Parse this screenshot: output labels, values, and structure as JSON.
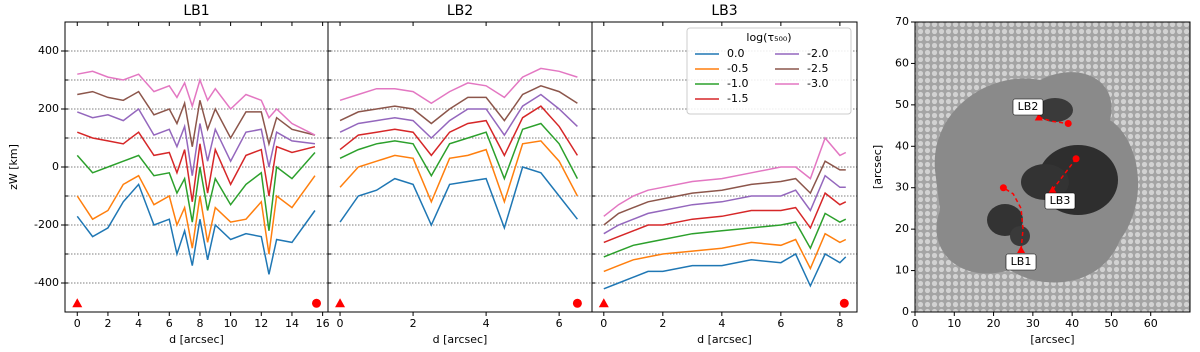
{
  "chart_data": [
    {
      "type": "line",
      "title": "LB1",
      "xlabel": "d [arcsec]",
      "ylabel": "zW [km]",
      "xlim": [
        -0.8,
        16.35
      ],
      "ylim": [
        -500,
        500
      ],
      "xticks": [
        0,
        2,
        4,
        6,
        8,
        10,
        12,
        14,
        16
      ],
      "yticks": [
        -400,
        -200,
        0,
        200,
        400
      ],
      "gridlines": [
        -400,
        -300,
        -200,
        -100,
        0,
        100,
        200,
        300,
        400
      ],
      "x": [
        0,
        1,
        2,
        3,
        4,
        5,
        6,
        6.5,
        7,
        7.5,
        8,
        8.5,
        9,
        10,
        11,
        12,
        12.5,
        13,
        14,
        15.5
      ],
      "series": [
        {
          "color": "#1f77b4",
          "values": [
            -170,
            -240,
            -210,
            -120,
            -60,
            -200,
            -180,
            -300,
            -220,
            -340,
            -180,
            -320,
            -200,
            -250,
            -230,
            -240,
            -370,
            -250,
            -260,
            -150
          ]
        },
        {
          "color": "#ff7f0e",
          "values": [
            -100,
            -180,
            -150,
            -60,
            -30,
            -130,
            -100,
            -200,
            -140,
            -280,
            -100,
            -260,
            -140,
            -190,
            -180,
            -120,
            -300,
            -100,
            -140,
            -30
          ]
        },
        {
          "color": "#2ca02c",
          "values": [
            40,
            -20,
            0,
            20,
            40,
            -30,
            -20,
            -90,
            -40,
            -190,
            0,
            -150,
            -40,
            -130,
            -60,
            -20,
            -220,
            0,
            -40,
            50
          ]
        },
        {
          "color": "#d62728",
          "values": [
            120,
            100,
            90,
            80,
            120,
            40,
            50,
            -20,
            60,
            -120,
            80,
            -90,
            60,
            -60,
            40,
            60,
            -100,
            70,
            50,
            70
          ]
        },
        {
          "color": "#9467bd",
          "values": [
            190,
            170,
            180,
            160,
            200,
            110,
            130,
            70,
            140,
            -30,
            150,
            20,
            130,
            20,
            120,
            130,
            0,
            120,
            90,
            80
          ]
        },
        {
          "color": "#8c564b",
          "values": [
            250,
            260,
            240,
            230,
            260,
            180,
            200,
            150,
            220,
            70,
            230,
            130,
            200,
            100,
            190,
            190,
            80,
            170,
            130,
            110
          ]
        },
        {
          "color": "#e377c2",
          "values": [
            320,
            330,
            310,
            300,
            320,
            260,
            280,
            240,
            290,
            210,
            300,
            230,
            270,
            200,
            250,
            230,
            170,
            200,
            150,
            110
          ]
        }
      ],
      "marker_color": "#ff0000",
      "markers": [
        {
          "shape": "triangle",
          "x": 0,
          "y": -470
        },
        {
          "shape": "circle",
          "x": 15.6,
          "y": -470
        }
      ]
    },
    {
      "type": "line",
      "title": "LB2",
      "xlabel": "d [arcsec]",
      "xlim": [
        -0.33,
        6.9
      ],
      "ylim": [
        -500,
        500
      ],
      "xticks": [
        0,
        2,
        4,
        6
      ],
      "gridlines": [
        -400,
        -300,
        -200,
        -100,
        0,
        100,
        200,
        300,
        400
      ],
      "x": [
        0,
        0.5,
        1,
        1.5,
        2,
        2.5,
        3,
        3.5,
        4,
        4.5,
        5,
        5.5,
        6,
        6.5
      ],
      "series": [
        {
          "color": "#1f77b4",
          "values": [
            -190,
            -100,
            -80,
            -40,
            -60,
            -200,
            -60,
            -50,
            -40,
            -210,
            0,
            -20,
            -100,
            -180
          ]
        },
        {
          "color": "#ff7f0e",
          "values": [
            -70,
            0,
            20,
            40,
            30,
            -120,
            30,
            40,
            60,
            -120,
            80,
            90,
            20,
            -100
          ]
        },
        {
          "color": "#2ca02c",
          "values": [
            30,
            60,
            80,
            90,
            80,
            -30,
            80,
            100,
            120,
            -40,
            130,
            150,
            80,
            -40
          ]
        },
        {
          "color": "#d62728",
          "values": [
            60,
            110,
            120,
            130,
            120,
            40,
            120,
            150,
            160,
            40,
            170,
            210,
            140,
            40
          ]
        },
        {
          "color": "#9467bd",
          "values": [
            120,
            150,
            160,
            170,
            160,
            100,
            160,
            200,
            200,
            110,
            210,
            250,
            200,
            140
          ]
        },
        {
          "color": "#8c564b",
          "values": [
            160,
            190,
            200,
            210,
            200,
            150,
            200,
            240,
            240,
            160,
            250,
            280,
            260,
            220
          ]
        },
        {
          "color": "#e377c2",
          "values": [
            230,
            250,
            270,
            270,
            260,
            220,
            260,
            290,
            280,
            240,
            310,
            340,
            330,
            310
          ]
        }
      ],
      "marker_color": "#ff0000",
      "markers": [
        {
          "shape": "triangle",
          "x": 0,
          "y": -470
        },
        {
          "shape": "circle",
          "x": 6.5,
          "y": -470
        }
      ]
    },
    {
      "type": "line",
      "title": "LB3",
      "xlabel": "d [arcsec]",
      "xlim": [
        -0.4,
        8.58
      ],
      "ylim": [
        -500,
        500
      ],
      "xticks": [
        0,
        2,
        4,
        6,
        8
      ],
      "gridlines": [
        -400,
        -300,
        -200,
        -100,
        0,
        100,
        200,
        300,
        400
      ],
      "x": [
        0,
        0.5,
        1,
        1.5,
        2,
        3,
        4,
        5,
        6,
        6.5,
        7,
        7.5,
        8,
        8.2
      ],
      "legend_title": "log(τ₅₀₀)",
      "legend": "upper right",
      "series": [
        {
          "name": "0.0",
          "color": "#1f77b4",
          "values": [
            -420,
            -400,
            -380,
            -360,
            -360,
            -340,
            -340,
            -320,
            -330,
            -300,
            -410,
            -300,
            -330,
            -310
          ]
        },
        {
          "name": "-0.5",
          "color": "#ff7f0e",
          "values": [
            -360,
            -340,
            -320,
            -310,
            -300,
            -290,
            -280,
            -260,
            -270,
            -250,
            -350,
            -230,
            -260,
            -250
          ]
        },
        {
          "name": "-1.0",
          "color": "#2ca02c",
          "values": [
            -310,
            -290,
            -270,
            -260,
            -250,
            -230,
            -220,
            -210,
            -200,
            -190,
            -280,
            -160,
            -190,
            -180
          ]
        },
        {
          "name": "-1.5",
          "color": "#d62728",
          "values": [
            -260,
            -240,
            -220,
            -200,
            -200,
            -180,
            -170,
            -150,
            -150,
            -140,
            -210,
            -90,
            -130,
            -120
          ]
        },
        {
          "name": "-2.0",
          "color": "#9467bd",
          "values": [
            -230,
            -200,
            -180,
            -160,
            -150,
            -130,
            -120,
            -100,
            -100,
            -80,
            -150,
            -30,
            -70,
            -70
          ]
        },
        {
          "name": "-2.5",
          "color": "#8c564b",
          "values": [
            -200,
            -160,
            -140,
            -120,
            -110,
            -90,
            -80,
            -60,
            -50,
            -40,
            -90,
            20,
            -10,
            -10
          ]
        },
        {
          "name": "-3.0",
          "color": "#e377c2",
          "values": [
            -170,
            -130,
            -100,
            -80,
            -70,
            -50,
            -40,
            -20,
            0,
            0,
            -40,
            100,
            40,
            50
          ]
        }
      ],
      "marker_color": "#ff0000",
      "markers": [
        {
          "shape": "triangle",
          "x": 0,
          "y": -470
        },
        {
          "shape": "circle",
          "x": 8.15,
          "y": -470
        }
      ]
    },
    {
      "type": "image",
      "xlabel": "[arcsec]",
      "ylabel": "[arcsec]",
      "xlim": [
        0,
        70
      ],
      "ylim": [
        0,
        70
      ],
      "xticks": [
        0,
        10,
        20,
        30,
        40,
        50,
        60
      ],
      "yticks": [
        0,
        10,
        20,
        30,
        40,
        50,
        60,
        70
      ],
      "annotation_color": "#ff0000",
      "annotations": [
        {
          "label": "LB1",
          "x": [
            27,
            27.5,
            27,
            25,
            22.5
          ],
          "y": [
            15,
            20,
            25,
            28.5,
            30
          ]
        },
        {
          "label": "LB2",
          "x": [
            31.5,
            35,
            39
          ],
          "y": [
            47,
            46,
            45.5
          ]
        },
        {
          "label": "LB3",
          "x": [
            35,
            37,
            39,
            41
          ],
          "y": [
            29.5,
            32,
            34.5,
            37
          ]
        }
      ]
    }
  ]
}
